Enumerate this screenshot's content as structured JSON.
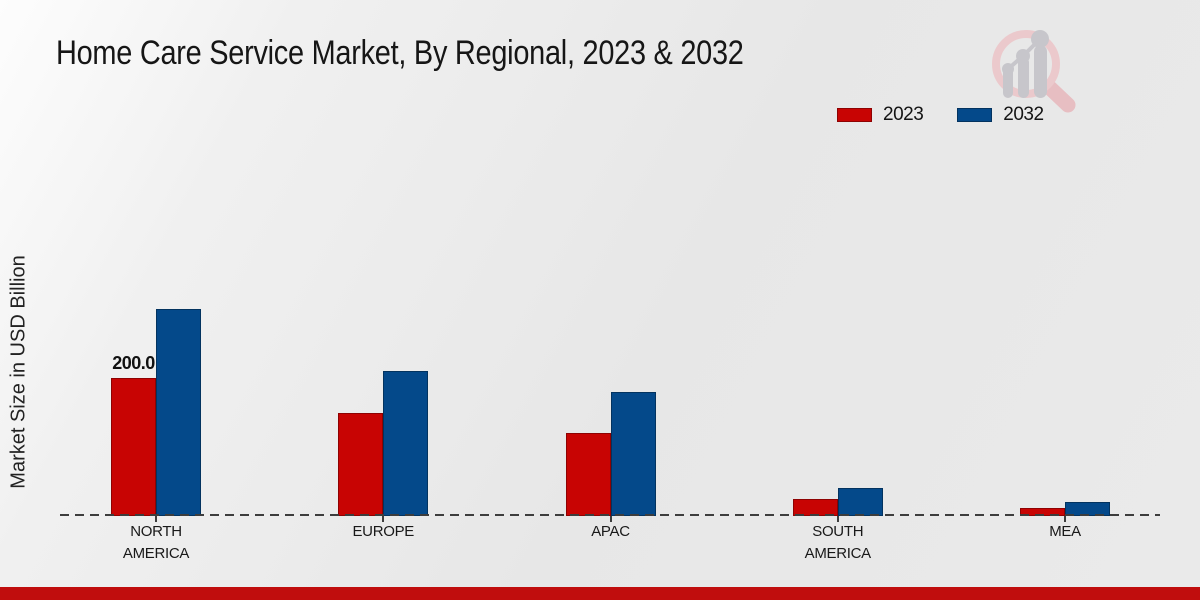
{
  "header": {
    "title": "Home Care Service Market, By Regional, 2023 & 2032"
  },
  "chart_data": {
    "type": "bar",
    "title": "Home Care Service Market, By Regional, 2023 & 2032",
    "categories": [
      "NORTH AMERICA",
      "EUROPE",
      "APAC",
      "SOUTH AMERICA",
      "MEA"
    ],
    "series": [
      {
        "name": "2023",
        "color": "#c80403",
        "edge_color": "#8e0202",
        "values": [
          200,
          150,
          120,
          25,
          12
        ]
      },
      {
        "name": "2032",
        "color": "#04498a",
        "edge_color": "#03335f",
        "values": [
          300,
          210,
          180,
          40,
          20
        ]
      }
    ],
    "xlabel": "",
    "ylabel": "Market Size in USD Billion",
    "units": "USD Billion",
    "ylim": [
      0,
      310
    ],
    "grid": false,
    "legend_position": "top-right",
    "baseline": {
      "style": "dashed",
      "color": "#3d3d3d"
    },
    "bar_labels": [
      {
        "series_index": 0,
        "category_index": 0,
        "text": "200.0"
      }
    ]
  },
  "logo": {
    "name": "market-research-magnifier-logo",
    "ring": "#ecc8cb",
    "handle": "#e7bcc0",
    "glyph": "#c6c5ca"
  },
  "footer": {
    "stripe_color": "#c00d0d"
  }
}
